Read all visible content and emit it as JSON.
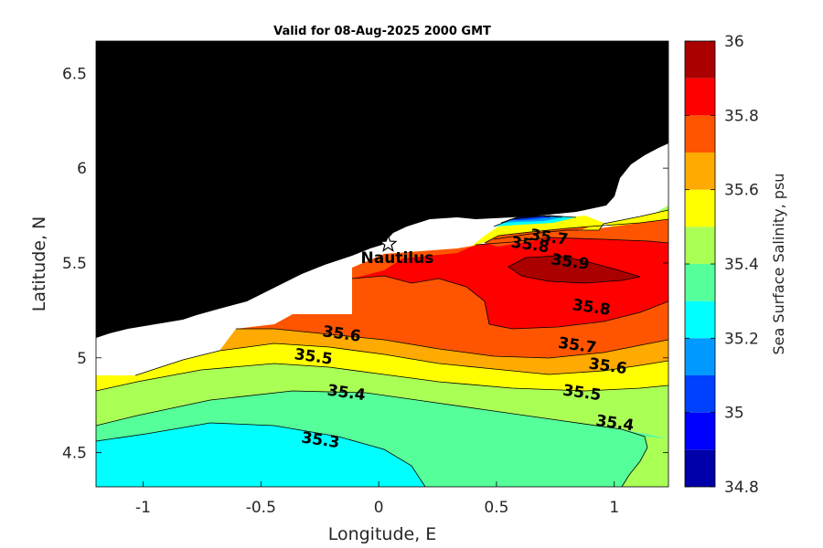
{
  "chart_data": {
    "type": "heatmap",
    "title": "Valid for 08-Aug-2025 2000 GMT",
    "xlabel": "Longitude, E",
    "ylabel": "Latitude, N",
    "xlim": [
      -1.2,
      1.23
    ],
    "ylim": [
      4.32,
      6.67
    ],
    "x_ticks": [
      -1,
      -0.5,
      0,
      0.5,
      1
    ],
    "x_tick_labels": [
      "-1",
      "-0.5",
      "0",
      "0.5",
      "1"
    ],
    "y_ticks": [
      4.5,
      5,
      5.5,
      6,
      6.5
    ],
    "y_tick_labels": [
      "4.5",
      "5",
      "5.5",
      "6",
      "6.5"
    ],
    "colorbar": {
      "label": "Sea Surface Salinity, psu",
      "min": 34.8,
      "max": 36,
      "ticks": [
        34.8,
        35,
        35.2,
        35.4,
        35.6,
        35.8,
        36
      ],
      "tick_labels": [
        "34.8",
        "35",
        "35.2",
        "35.4",
        "35.6",
        "35.8",
        "36"
      ],
      "levels": [
        34.8,
        34.9,
        35.0,
        35.1,
        35.2,
        35.3,
        35.4,
        35.5,
        35.6,
        35.7,
        35.8,
        35.9,
        36.0
      ],
      "colors": [
        "#0000aa",
        "#0000ff",
        "#0040ff",
        "#0099ff",
        "#00ffff",
        "#55ff99",
        "#aaff55",
        "#ffff00",
        "#ffaa00",
        "#ff5500",
        "#ff0000",
        "#aa0000"
      ]
    },
    "contour_labels": [
      {
        "text": "35.3",
        "x": -0.25,
        "y": 4.54
      },
      {
        "text": "35.4",
        "x": -0.14,
        "y": 4.79
      },
      {
        "text": "35.4",
        "x": 1.0,
        "y": 4.63
      },
      {
        "text": "35.5",
        "x": -0.28,
        "y": 4.98
      },
      {
        "text": "35.5",
        "x": 0.86,
        "y": 4.79
      },
      {
        "text": "35.6",
        "x": -0.16,
        "y": 5.1
      },
      {
        "text": "35.6",
        "x": 0.97,
        "y": 4.93
      },
      {
        "text": "35.7",
        "x": 0.84,
        "y": 5.04
      },
      {
        "text": "35.7",
        "x": 0.72,
        "y": 5.61
      },
      {
        "text": "35.8",
        "x": 0.9,
        "y": 5.24
      },
      {
        "text": "35.8",
        "x": 0.64,
        "y": 5.57
      },
      {
        "text": "35.9",
        "x": 0.81,
        "y": 5.48
      }
    ],
    "annotations": [
      {
        "text": "Nautilus",
        "x": 0.04,
        "y": 5.6,
        "marker": "star"
      }
    ],
    "land_color": "#000000",
    "nodata_color": "#ffffff"
  }
}
